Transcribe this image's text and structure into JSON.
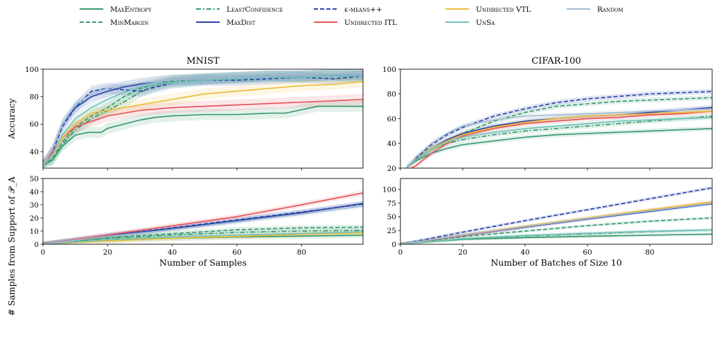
{
  "legend": {
    "items": [
      {
        "label": "MaxEntropy",
        "color": "#3a9a6e",
        "dash": "solid",
        "smallcaps": true
      },
      {
        "label": "MinMargin",
        "color": "#3a9a6e",
        "dash": "dashed",
        "smallcaps": true
      },
      {
        "label": "LeastConfidence",
        "color": "#3a9a6e",
        "dash": "dashdot",
        "smallcaps": true
      },
      {
        "label": "MaxDist",
        "color": "#2946a8",
        "dash": "solid",
        "smallcaps": true
      },
      {
        "label": "k-means++",
        "color": "#2946a8",
        "dash": "dashed",
        "smallcaps": true
      },
      {
        "label": "Undirected ITL",
        "color": "#e8545c",
        "dash": "solid",
        "smallcaps": true
      },
      {
        "label": "Undirected VTL",
        "color": "#ecbd3c",
        "dash": "solid",
        "smallcaps": true
      },
      {
        "label": "UnSa",
        "color": "#72c2ba",
        "dash": "solid",
        "smallcaps": true
      },
      {
        "label": "Random",
        "color": "#a4bcd2",
        "dash": "solid",
        "smallcaps": true
      }
    ]
  },
  "chart_data": [
    {
      "id": "mnist_accuracy",
      "type": "line",
      "title": "MNIST",
      "xlabel": "",
      "ylabel": "Accuracy",
      "xlim": [
        0,
        99
      ],
      "ylim": [
        28,
        100
      ],
      "xticks": [
        0,
        20,
        40,
        60,
        80
      ],
      "yticks": [
        40,
        60,
        80,
        100
      ],
      "xticklabels": [],
      "band": 4,
      "series": [
        {
          "name": "MaxEntropy",
          "x": [
            0,
            3,
            6,
            10,
            12,
            14,
            18,
            20,
            25,
            30,
            35,
            40,
            50,
            60,
            70,
            75,
            85,
            99
          ],
          "y": [
            30,
            34,
            44,
            52,
            53,
            54,
            54,
            57,
            60,
            63,
            65,
            66,
            67,
            67,
            68,
            68,
            73,
            73
          ]
        },
        {
          "name": "MinMargin",
          "x": [
            0,
            3,
            6,
            10,
            15,
            20,
            25,
            30,
            35,
            40,
            50,
            60,
            70,
            80,
            90,
            99
          ],
          "y": [
            30,
            35,
            47,
            58,
            66,
            72,
            80,
            86,
            89,
            92,
            93,
            94,
            95,
            95,
            95,
            95
          ]
        },
        {
          "name": "LeastConfidence",
          "x": [
            0,
            3,
            6,
            10,
            15,
            20,
            25,
            30,
            35,
            40,
            50,
            60,
            70,
            80,
            90,
            99
          ],
          "y": [
            30,
            34,
            45,
            56,
            64,
            70,
            76,
            83,
            88,
            91,
            93,
            94,
            95,
            95,
            96,
            96
          ]
        },
        {
          "name": "MaxDist",
          "x": [
            0,
            3,
            6,
            10,
            15,
            20,
            25,
            30,
            35,
            40,
            50,
            60,
            70,
            80,
            90,
            99
          ],
          "y": [
            30,
            42,
            60,
            72,
            80,
            84,
            87,
            89,
            91,
            92,
            93,
            94,
            95,
            95,
            96,
            96
          ]
        },
        {
          "name": "k-means++",
          "x": [
            0,
            3,
            6,
            10,
            15,
            20,
            25,
            30,
            35,
            40,
            50,
            60,
            70,
            80,
            90,
            99
          ],
          "y": [
            30,
            40,
            58,
            72,
            84,
            86,
            85,
            84,
            87,
            90,
            92,
            92,
            93,
            94,
            93,
            95
          ]
        },
        {
          "name": "Undirected ITL",
          "x": [
            0,
            3,
            6,
            10,
            15,
            20,
            25,
            30,
            35,
            40,
            50,
            60,
            70,
            80,
            90,
            99
          ],
          "y": [
            30,
            40,
            50,
            58,
            62,
            66,
            68,
            70,
            71,
            72,
            73,
            74,
            75,
            76,
            77,
            78
          ]
        },
        {
          "name": "Undirected VTL",
          "x": [
            0,
            3,
            6,
            10,
            15,
            20,
            25,
            30,
            35,
            40,
            50,
            60,
            70,
            80,
            90,
            99
          ],
          "y": [
            30,
            38,
            50,
            60,
            68,
            70,
            72,
            74,
            76,
            78,
            82,
            84,
            86,
            88,
            89,
            91
          ]
        },
        {
          "name": "UnSa",
          "x": [
            0,
            3,
            6,
            10,
            15,
            20,
            25,
            30,
            35,
            40,
            50,
            60,
            70,
            80,
            90,
            99
          ],
          "y": [
            30,
            38,
            52,
            64,
            72,
            78,
            83,
            87,
            89,
            90,
            92,
            93,
            94,
            94,
            95,
            95
          ]
        },
        {
          "name": "Random",
          "x": [
            0,
            3,
            6,
            10,
            15,
            20,
            25,
            30,
            35,
            40,
            50,
            60,
            70,
            80,
            90,
            99
          ],
          "y": [
            30,
            42,
            60,
            74,
            82,
            86,
            88,
            90,
            91,
            92,
            93,
            94,
            95,
            95,
            96,
            96
          ]
        }
      ]
    },
    {
      "id": "cifar_accuracy",
      "type": "line",
      "title": "CIFAR-100",
      "xlabel": "",
      "ylabel": "",
      "xlim": [
        0,
        100
      ],
      "ylim": [
        20,
        100
      ],
      "xticks": [
        0,
        20,
        40,
        60,
        80
      ],
      "yticks": [
        20,
        40,
        60,
        80,
        100
      ],
      "xticklabels": [],
      "band": 2,
      "series": [
        {
          "name": "MaxEntropy",
          "x": [
            2,
            5,
            10,
            15,
            20,
            30,
            40,
            50,
            60,
            70,
            80,
            90,
            100
          ],
          "y": [
            20,
            26,
            32,
            36,
            39,
            42,
            45,
            47,
            48,
            49,
            50,
            51,
            52
          ]
        },
        {
          "name": "MinMargin",
          "x": [
            2,
            5,
            10,
            15,
            20,
            30,
            40,
            50,
            60,
            70,
            80,
            90,
            100
          ],
          "y": [
            20,
            27,
            36,
            42,
            48,
            58,
            65,
            70,
            72,
            74,
            75,
            76,
            77
          ]
        },
        {
          "name": "LeastConfidence",
          "x": [
            2,
            5,
            10,
            15,
            20,
            30,
            40,
            50,
            60,
            70,
            80,
            90,
            100
          ],
          "y": [
            20,
            27,
            35,
            40,
            43,
            47,
            50,
            52,
            54,
            56,
            58,
            60,
            62
          ]
        },
        {
          "name": "MaxDist",
          "x": [
            2,
            5,
            10,
            15,
            20,
            30,
            40,
            50,
            60,
            70,
            80,
            90,
            100
          ],
          "y": [
            20,
            27,
            36,
            43,
            48,
            54,
            58,
            60,
            62,
            63,
            65,
            67,
            69
          ]
        },
        {
          "name": "k-means++",
          "x": [
            2,
            5,
            10,
            15,
            20,
            30,
            40,
            50,
            60,
            70,
            80,
            90,
            100
          ],
          "y": [
            20,
            28,
            39,
            47,
            53,
            62,
            68,
            73,
            76,
            78,
            80,
            81,
            82
          ]
        },
        {
          "name": "Undirected ITL",
          "x": [
            2,
            5,
            10,
            15,
            20,
            30,
            40,
            50,
            60,
            70,
            80,
            90,
            100
          ],
          "y": [
            18,
            22,
            32,
            40,
            46,
            52,
            56,
            58,
            60,
            61,
            63,
            64,
            66
          ]
        },
        {
          "name": "Undirected VTL",
          "x": [
            2,
            5,
            10,
            15,
            20,
            30,
            40,
            50,
            60,
            70,
            80,
            90,
            100
          ],
          "y": [
            20,
            27,
            36,
            42,
            47,
            53,
            57,
            60,
            62,
            63,
            64,
            65,
            66
          ]
        },
        {
          "name": "UnSa",
          "x": [
            2,
            5,
            10,
            15,
            20,
            30,
            40,
            50,
            60,
            70,
            80,
            90,
            100
          ],
          "y": [
            20,
            27,
            35,
            41,
            45,
            49,
            52,
            54,
            56,
            58,
            59,
            60,
            61
          ]
        },
        {
          "name": "Random",
          "x": [
            2,
            5,
            10,
            15,
            20,
            30,
            40,
            50,
            60,
            70,
            80,
            90,
            100
          ],
          "y": [
            20,
            29,
            40,
            48,
            54,
            59,
            62,
            63,
            64,
            65,
            66,
            67,
            68
          ]
        }
      ]
    },
    {
      "id": "mnist_support",
      "type": "line",
      "title": "",
      "xlabel": "Number of Samples",
      "ylabel": "# Samples from Support of 𝒫_A",
      "xlim": [
        0,
        99
      ],
      "ylim": [
        0,
        50
      ],
      "xticks": [
        0,
        20,
        40,
        60,
        80
      ],
      "yticks": [
        0,
        10,
        20,
        30,
        40,
        50
      ],
      "xticklabels": [
        "0",
        "20",
        "40",
        "60",
        "80"
      ],
      "band": 2,
      "series": [
        {
          "name": "MaxEntropy",
          "x": [
            0,
            20,
            40,
            60,
            80,
            99
          ],
          "y": [
            0,
            3,
            4.5,
            5.5,
            6.2,
            6.8
          ]
        },
        {
          "name": "MinMargin",
          "x": [
            0,
            20,
            40,
            60,
            80,
            99
          ],
          "y": [
            0,
            5,
            8,
            11,
            12.5,
            13
          ]
        },
        {
          "name": "LeastConfidence",
          "x": [
            0,
            20,
            40,
            60,
            80,
            99
          ],
          "y": [
            0,
            4.5,
            7,
            9,
            10,
            10.5
          ]
        },
        {
          "name": "MaxDist",
          "x": [
            0,
            20,
            40,
            60,
            80,
            99
          ],
          "y": [
            0,
            6.5,
            12,
            18,
            24,
            31
          ]
        },
        {
          "name": "k-means++",
          "x": [
            0,
            20,
            40,
            60,
            80,
            99
          ],
          "y": [
            0,
            6.5,
            12.5,
            18.5,
            24.5,
            30.5
          ]
        },
        {
          "name": "Undirected ITL",
          "x": [
            0,
            20,
            40,
            60,
            80,
            99
          ],
          "y": [
            0,
            7,
            14,
            21,
            30,
            39
          ]
        },
        {
          "name": "Undirected VTL",
          "x": [
            0,
            20,
            40,
            60,
            80,
            99
          ],
          "y": [
            0,
            2.5,
            4.5,
            6,
            7.5,
            8.5
          ]
        },
        {
          "name": "UnSa",
          "x": [
            0,
            20,
            40,
            60,
            80,
            99
          ],
          "y": [
            0,
            3.5,
            5.5,
            7,
            8.2,
            9.5
          ]
        },
        {
          "name": "Random",
          "x": [
            0,
            20,
            40,
            60,
            80,
            99
          ],
          "y": [
            0,
            6,
            11,
            17,
            23,
            29
          ]
        }
      ]
    },
    {
      "id": "cifar_support",
      "type": "line",
      "title": "",
      "xlabel": "Number of Batches of Size 10",
      "ylabel": "",
      "xlim": [
        0,
        100
      ],
      "ylim": [
        0,
        120
      ],
      "xticks": [
        0,
        20,
        40,
        60,
        80
      ],
      "yticks": [
        0,
        25,
        50,
        75,
        100
      ],
      "xticklabels": [
        "0",
        "20",
        "40",
        "60",
        "80"
      ],
      "band": 3,
      "series": [
        {
          "name": "MaxEntropy",
          "x": [
            0,
            20,
            40,
            60,
            80,
            100
          ],
          "y": [
            0,
            9,
            12,
            14.5,
            16.5,
            18.5
          ]
        },
        {
          "name": "MinMargin",
          "x": [
            0,
            20,
            40,
            60,
            80,
            100
          ],
          "y": [
            0,
            14,
            24,
            34,
            42,
            48
          ]
        },
        {
          "name": "LeastConfidence",
          "x": [
            0,
            20,
            40,
            60,
            80,
            100
          ],
          "y": [
            0,
            10,
            15,
            19,
            23,
            26
          ]
        },
        {
          "name": "MaxDist",
          "x": [
            0,
            20,
            40,
            60,
            80,
            100
          ],
          "y": [
            0,
            16,
            31,
            46,
            60,
            74
          ]
        },
        {
          "name": "k-means++",
          "x": [
            0,
            20,
            40,
            60,
            80,
            100
          ],
          "y": [
            0,
            22,
            43,
            63,
            83,
            103
          ]
        },
        {
          "name": "Undirected ITL",
          "x": [
            0,
            20,
            40,
            60,
            80,
            100
          ],
          "y": [
            0,
            16,
            32,
            47,
            62,
            77
          ]
        },
        {
          "name": "Undirected VTL",
          "x": [
            0,
            20,
            40,
            60,
            80,
            100
          ],
          "y": [
            0,
            17,
            33,
            48,
            63,
            77
          ]
        },
        {
          "name": "UnSa",
          "x": [
            0,
            20,
            40,
            60,
            80,
            100
          ],
          "y": [
            0,
            10,
            16,
            20,
            23.5,
            26
          ]
        },
        {
          "name": "Random",
          "x": [
            0,
            20,
            40,
            60,
            80,
            100
          ],
          "y": [
            0,
            17,
            32,
            47,
            61,
            75
          ]
        }
      ]
    }
  ]
}
